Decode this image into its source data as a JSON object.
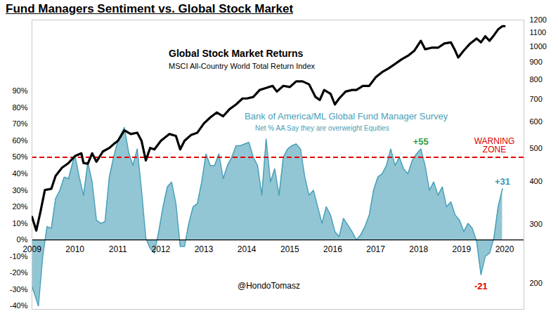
{
  "chart_data": {
    "type": "line",
    "title": "Fund Managers Sentiment vs. Global Stock Market",
    "caption": "@HondoTomasz",
    "xlim": [
      2009,
      2020.45
    ],
    "xticks": [
      2009,
      2010,
      2011,
      2012,
      2013,
      2014,
      2015,
      2016,
      2017,
      2018,
      2019,
      2020
    ],
    "ylim": [
      -42,
      133
    ],
    "yticks": [
      {
        "value": -40,
        "label": "-40%"
      },
      {
        "value": -30,
        "label": "-30%"
      },
      {
        "value": -20,
        "label": "-20%"
      },
      {
        "value": -10,
        "label": "-10%"
      },
      {
        "value": 0,
        "label": "0%"
      },
      {
        "value": 10,
        "label": "10%"
      },
      {
        "value": 20,
        "label": "20%"
      },
      {
        "value": 30,
        "label": "30%"
      },
      {
        "value": 40,
        "label": "40%"
      },
      {
        "value": 50,
        "label": "50%"
      },
      {
        "value": 60,
        "label": "60%"
      },
      {
        "value": 70,
        "label": "70%"
      },
      {
        "value": 80,
        "label": "80%"
      },
      {
        "value": 90,
        "label": "90%"
      }
    ],
    "y2lim": [
      168,
      1200
    ],
    "y2ticks": [
      200,
      300,
      400,
      500,
      600,
      700,
      800,
      900,
      1000,
      1100,
      1200
    ],
    "log": "y2",
    "grid": false,
    "series": [
      {
        "name": "Bank of America/ML Global Fund Manager Survey",
        "description": "Net % AA Say they are overweight Equities",
        "type": "area",
        "color": "#4aa0b8",
        "x": [
          2009.0,
          2009.15,
          2009.25,
          2009.35,
          2009.45,
          2009.55,
          2009.65,
          2009.75,
          2009.85,
          2009.95,
          2010.0,
          2010.1,
          2010.2,
          2010.3,
          2010.4,
          2010.5,
          2010.6,
          2010.7,
          2010.8,
          2010.9,
          2011.0,
          2011.15,
          2011.25,
          2011.35,
          2011.45,
          2011.55,
          2011.65,
          2011.75,
          2011.85,
          2011.95,
          2012.05,
          2012.15,
          2012.25,
          2012.35,
          2012.45,
          2012.55,
          2012.65,
          2012.75,
          2012.85,
          2012.95,
          2013.05,
          2013.15,
          2013.25,
          2013.35,
          2013.45,
          2013.55,
          2013.65,
          2013.75,
          2013.85,
          2013.95,
          2014.05,
          2014.15,
          2014.25,
          2014.35,
          2014.45,
          2014.55,
          2014.65,
          2014.75,
          2014.85,
          2014.95,
          2015.05,
          2015.15,
          2015.25,
          2015.35,
          2015.45,
          2015.55,
          2015.65,
          2015.75,
          2015.85,
          2015.95,
          2016.05,
          2016.15,
          2016.25,
          2016.35,
          2016.45,
          2016.55,
          2016.65,
          2016.75,
          2016.85,
          2016.95,
          2017.05,
          2017.15,
          2017.25,
          2017.35,
          2017.45,
          2017.55,
          2017.65,
          2017.75,
          2017.85,
          2017.95,
          2018.05,
          2018.15,
          2018.25,
          2018.35,
          2018.45,
          2018.55,
          2018.65,
          2018.75,
          2018.85,
          2018.95,
          2019.05,
          2019.15,
          2019.25,
          2019.35,
          2019.45,
          2019.55,
          2019.65,
          2019.75,
          2019.85,
          2019.95
        ],
        "values": [
          -28,
          -40,
          -10,
          8,
          7,
          25,
          30,
          38,
          37,
          47,
          51,
          38,
          27,
          47,
          35,
          12,
          10,
          11,
          38,
          50,
          60,
          68,
          53,
          45,
          55,
          30,
          1,
          -5,
          -8,
          5,
          20,
          32,
          35,
          22,
          -4,
          -4,
          10,
          20,
          22,
          35,
          52,
          45,
          45,
          52,
          37,
          45,
          50,
          57,
          57,
          58,
          59,
          50,
          45,
          27,
          61,
          35,
          43,
          27,
          50,
          55,
          57,
          58,
          55,
          38,
          27,
          30,
          20,
          10,
          20,
          15,
          5,
          2,
          13,
          9,
          5,
          0,
          3,
          8,
          15,
          30,
          38,
          40,
          45,
          55,
          45,
          50,
          43,
          40,
          48,
          52,
          55,
          45,
          30,
          35,
          27,
          32,
          20,
          23,
          15,
          12,
          5,
          10,
          7,
          -1,
          -21,
          -10,
          -8,
          1,
          20,
          31
        ]
      },
      {
        "name": "Global Stock Market Returns",
        "description": "MSCI All-Country World Total Return Index",
        "type": "line",
        "color": "#000000",
        "axis": "y2",
        "x": [
          2009.0,
          2009.1,
          2009.2,
          2009.3,
          2009.45,
          2009.55,
          2009.7,
          2009.85,
          2010.0,
          2010.15,
          2010.2,
          2010.3,
          2010.4,
          2010.5,
          2010.65,
          2010.8,
          2010.9,
          2011.0,
          2011.15,
          2011.3,
          2011.45,
          2011.55,
          2011.65,
          2011.75,
          2011.85,
          2012.0,
          2012.2,
          2012.35,
          2012.45,
          2012.55,
          2012.7,
          2012.85,
          2013.0,
          2013.15,
          2013.3,
          2013.45,
          2013.6,
          2013.75,
          2013.9,
          2014.0,
          2014.15,
          2014.3,
          2014.45,
          2014.6,
          2014.7,
          2014.85,
          2015.0,
          2015.15,
          2015.3,
          2015.45,
          2015.6,
          2015.7,
          2015.8,
          2015.95,
          2016.05,
          2016.15,
          2016.3,
          2016.45,
          2016.55,
          2016.7,
          2016.85,
          2017.0,
          2017.15,
          2017.3,
          2017.45,
          2017.6,
          2017.75,
          2017.9,
          2018.05,
          2018.15,
          2018.3,
          2018.45,
          2018.6,
          2018.75,
          2018.85,
          2018.92,
          2019.05,
          2019.2,
          2019.35,
          2019.45,
          2019.55,
          2019.65,
          2019.75,
          2019.85,
          2019.95,
          2020.0
        ],
        "values": [
          315,
          287,
          327,
          378,
          381,
          416,
          440,
          454,
          476,
          485,
          454,
          452,
          485,
          458,
          491,
          503,
          516,
          528,
          567,
          553,
          558,
          528,
          462,
          503,
          498,
          528,
          553,
          546,
          498,
          528,
          549,
          558,
          594,
          619,
          640,
          624,
          655,
          676,
          704,
          704,
          711,
          746,
          756,
          767,
          738,
          767,
          761,
          791,
          791,
          775,
          711,
          697,
          746,
          727,
          676,
          704,
          738,
          746,
          746,
          767,
          767,
          813,
          842,
          864,
          890,
          918,
          941,
          974,
          1042,
          984,
          994,
          994,
          1023,
          1031,
          975,
          930,
          975,
          1023,
          1058,
          1031,
          1075,
          1042,
          1081,
          1126,
          1151,
          1151
        ]
      }
    ],
    "threshold": {
      "value": 50,
      "label": "WARNING\nZONE",
      "color": "#e00000",
      "line_style": "dashed"
    },
    "annotations": [
      {
        "text": "+55",
        "x": 2018.05,
        "value": 55,
        "color": "#2e9e3e"
      },
      {
        "text": "+31",
        "x": 2019.95,
        "value": 31,
        "color": "#3a93ad"
      },
      {
        "text": "-21",
        "x": 2019.45,
        "value": -21,
        "color": "#e00000"
      }
    ]
  }
}
